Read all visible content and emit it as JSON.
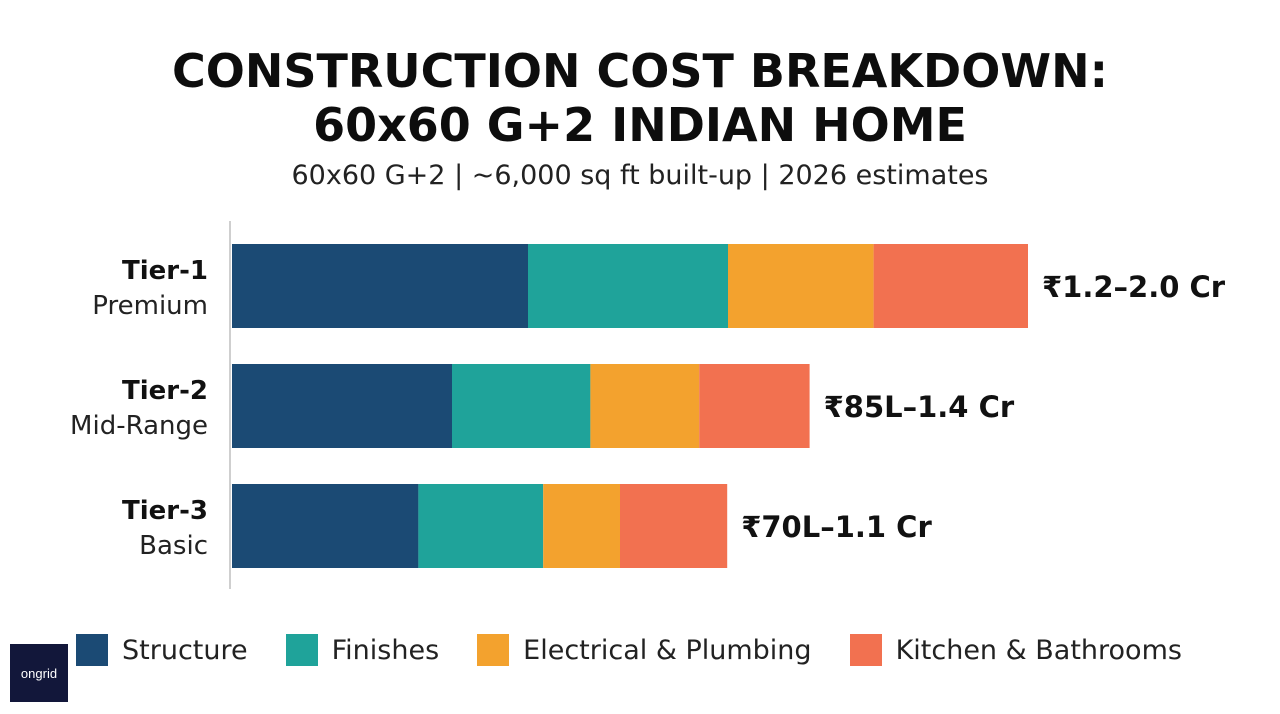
{
  "header": {
    "title_line1": "CONSTRUCTION COST BREAKDOWN:",
    "title_line2": "60x60 G+2 INDIAN HOME",
    "subtitle": "60x60 G+2 | ~6,000 sq ft built-up | 2026 estimates"
  },
  "logo": {
    "text": "ongrid"
  },
  "chart_data": {
    "type": "bar",
    "orientation": "horizontal",
    "stacked": true,
    "categories": [
      {
        "tier": "Tier-1",
        "label": "Premium",
        "total_label": "₹1.2–2.0 Cr"
      },
      {
        "tier": "Tier-2",
        "label": "Mid-Range",
        "total_label": "₹85L–1.4 Cr"
      },
      {
        "tier": "Tier-3",
        "label": "Basic",
        "total_label": "₹70L–1.1 Cr"
      }
    ],
    "series": [
      {
        "name": "Structure",
        "color": "#1b4a74",
        "values": [
          37,
          27.5,
          23.3
        ]
      },
      {
        "name": "Finishes",
        "color": "#1fa39a",
        "values": [
          25,
          17.3,
          15.6
        ]
      },
      {
        "name": "Electrical & Plumbing",
        "color": "#f3a22e",
        "values": [
          18.2,
          13.6,
          9.6
        ]
      },
      {
        "name": "Kitchen & Bathrooms",
        "color": "#f27150",
        "values": [
          19.3,
          13.8,
          13.4
        ]
      }
    ],
    "xlim": [
      0,
      100
    ],
    "grid": false,
    "legend_position": "bottom"
  }
}
